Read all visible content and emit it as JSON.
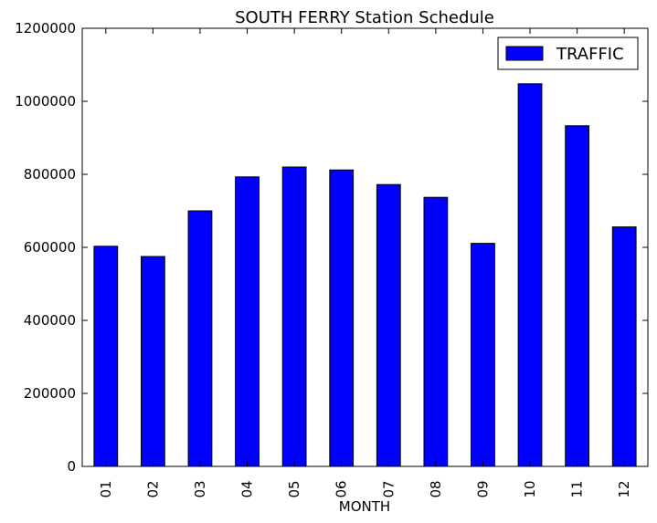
{
  "chart_data": {
    "type": "bar",
    "title": "SOUTH FERRY Station Schedule",
    "xlabel": "MONTH",
    "ylabel": "",
    "categories": [
      "01",
      "02",
      "03",
      "04",
      "05",
      "06",
      "07",
      "08",
      "09",
      "10",
      "11",
      "12"
    ],
    "series": [
      {
        "name": "TRAFFIC",
        "values": [
          603000,
          575000,
          700000,
          793000,
          820000,
          812000,
          772000,
          737000,
          611000,
          1048000,
          933000,
          656000
        ],
        "color": "#0000ff"
      }
    ],
    "ylim": [
      0,
      1200000
    ],
    "yticks": [
      "0",
      "200000",
      "400000",
      "600000",
      "800000",
      "1000000",
      "1200000"
    ],
    "ytick_values": [
      0,
      200000,
      400000,
      600000,
      800000,
      1000000,
      1200000
    ],
    "grid": false,
    "legend_position": "top-right"
  }
}
